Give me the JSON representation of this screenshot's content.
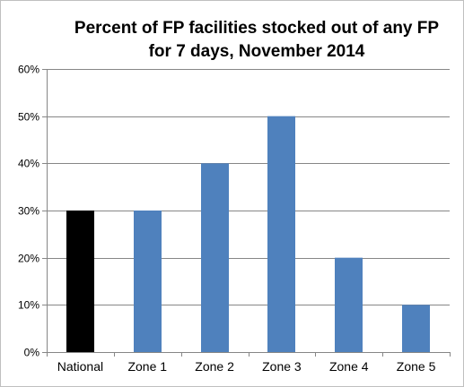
{
  "chart_data": {
    "type": "bar",
    "title": "Percent of FP facilities stocked out of any FP for 7 days, November 2014",
    "categories": [
      "National",
      "Zone 1",
      "Zone 2",
      "Zone 3",
      "Zone 4",
      "Zone 5"
    ],
    "values": [
      0.3,
      0.3,
      0.4,
      0.5,
      0.2,
      0.1
    ],
    "colors": [
      "#000000",
      "#4f81bd",
      "#4f81bd",
      "#4f81bd",
      "#4f81bd",
      "#4f81bd"
    ],
    "ylim": [
      0,
      0.6
    ],
    "yticks": [
      0,
      0.1,
      0.2,
      0.3,
      0.4,
      0.5,
      0.6
    ],
    "ytick_labels": [
      "0%",
      "10%",
      "20%",
      "30%",
      "40%",
      "50%",
      "60%"
    ],
    "xlabel": "",
    "ylabel": "",
    "grid": true,
    "legend": "none"
  }
}
